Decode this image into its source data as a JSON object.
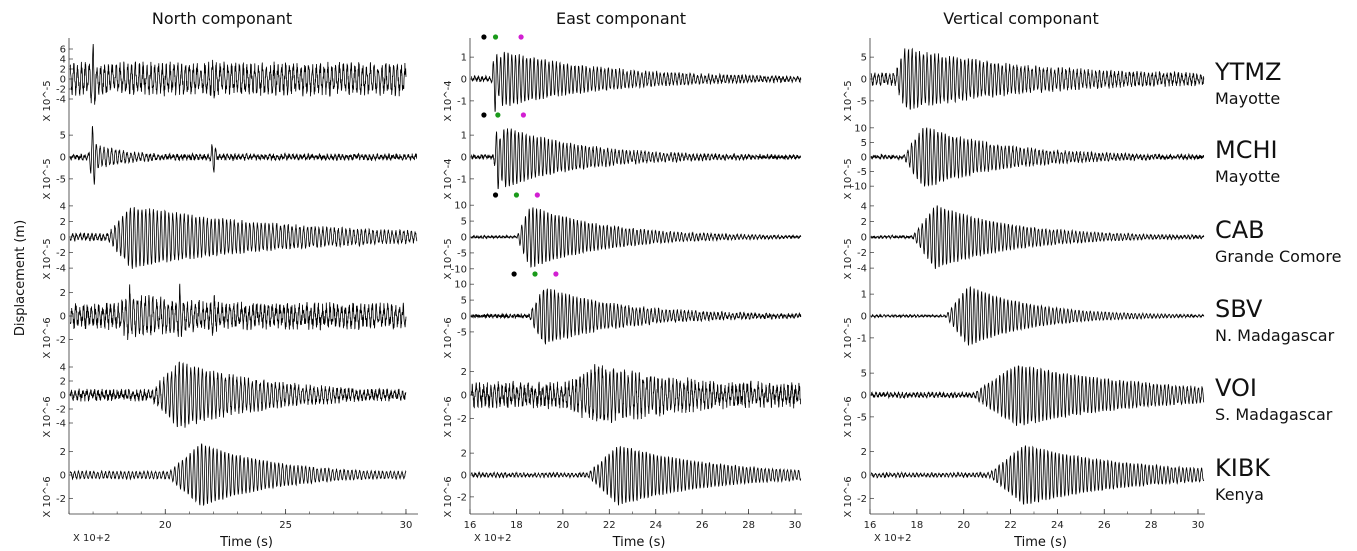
{
  "chart_data": {
    "type": "line",
    "ylabel": "Displacement (m)",
    "panels": [
      {
        "title": "North componant",
        "xlabel": "Time (s)",
        "x_multiplier": "X 10+2",
        "xlim": [
          16,
          30.5
        ],
        "x_ticks": [
          "20",
          "25",
          "30"
        ],
        "traces": [
          {
            "station": "YTMZ",
            "scale": "X 10^-5",
            "y_ticks": [
              "6",
              "4",
              "2",
              "0",
              "-2",
              "-4"
            ],
            "ylim": [
              -5,
              7
            ]
          },
          {
            "station": "MCHI",
            "scale": "X 10^-5",
            "y_ticks": [
              "5",
              "0",
              "-5"
            ],
            "ylim": [
              -7,
              8
            ]
          },
          {
            "station": "CAB",
            "scale": "X 10^-5",
            "y_ticks": [
              "4",
              "2",
              "0",
              "-2",
              "-4"
            ],
            "ylim": [
              -4.5,
              4.5
            ]
          },
          {
            "station": "SBV",
            "scale": "X 10^-6",
            "y_ticks": [
              "2",
              "0",
              "-2"
            ],
            "ylim": [
              -3,
              3
            ]
          },
          {
            "station": "VOI",
            "scale": "X 10^-6",
            "y_ticks": [
              "4",
              "2",
              "0",
              "-2",
              "-4"
            ],
            "ylim": [
              -5,
              5
            ]
          },
          {
            "station": "KIBK",
            "scale": "X 10^-6",
            "y_ticks": [
              "2",
              "0",
              "-2"
            ],
            "ylim": [
              -3,
              3
            ]
          }
        ]
      },
      {
        "title": "East componant",
        "xlabel": "Time (s)",
        "x_multiplier": "X 10+2",
        "xlim": [
          16,
          30.3
        ],
        "x_ticks": [
          "16",
          "18",
          "20",
          "22",
          "24",
          "26",
          "28",
          "30"
        ],
        "traces": [
          {
            "station": "YTMZ",
            "scale": "X 10^-4",
            "y_ticks": [
              "1",
              "0",
              "-1"
            ],
            "ylim": [
              -1.6,
              1.6
            ],
            "markers": [
              {
                "x": 16.6,
                "color": "#000000"
              },
              {
                "x": 17.1,
                "color": "#1a9a1a"
              },
              {
                "x": 18.2,
                "color": "#d21fd2"
              }
            ]
          },
          {
            "station": "MCHI",
            "scale": "X 10^-4",
            "y_ticks": [
              "1",
              "0",
              "-1"
            ],
            "ylim": [
              -1.6,
              1.6
            ],
            "markers": [
              {
                "x": 16.6,
                "color": "#000000"
              },
              {
                "x": 17.2,
                "color": "#1a9a1a"
              },
              {
                "x": 18.3,
                "color": "#d21fd2"
              }
            ]
          },
          {
            "station": "CAB",
            "scale": "X 10^-5",
            "y_ticks": [
              "10",
              "5",
              "0",
              "-5",
              "-10"
            ],
            "ylim": [
              -11,
              11
            ],
            "markers": [
              {
                "x": 17.1,
                "color": "#000000"
              },
              {
                "x": 18.0,
                "color": "#1a9a1a"
              },
              {
                "x": 18.9,
                "color": "#d21fd2"
              }
            ]
          },
          {
            "station": "SBV",
            "scale": "X 10^-6",
            "y_ticks": [
              "10",
              "5",
              "0",
              "-5"
            ],
            "ylim": [
              -10,
              11
            ],
            "markers": [
              {
                "x": 17.9,
                "color": "#000000"
              },
              {
                "x": 18.8,
                "color": "#1a9a1a"
              },
              {
                "x": 19.7,
                "color": "#d21fd2"
              }
            ]
          },
          {
            "station": "VOI",
            "scale": "X 10^-6",
            "y_ticks": [
              "2",
              "0",
              "-2"
            ],
            "ylim": [
              -3,
              3
            ]
          },
          {
            "station": "KIBK",
            "scale": "X 10^-6",
            "y_ticks": [
              "2",
              "0",
              "-2"
            ],
            "ylim": [
              -3.2,
              3.2
            ]
          }
        ]
      },
      {
        "title": "Vertical componant",
        "xlabel": "Time (s)",
        "x_multiplier": "X 10+2",
        "xlim": [
          16,
          30.3
        ],
        "x_ticks": [
          "16",
          "18",
          "20",
          "22",
          "24",
          "26",
          "28",
          "30"
        ],
        "traces": [
          {
            "station": "YTMZ",
            "scale": "X 10^-5",
            "y_ticks": [
              "5",
              "0",
              "-5"
            ],
            "ylim": [
              -8,
              8
            ]
          },
          {
            "station": "MCHI",
            "scale": "X 10^-5",
            "y_ticks": [
              "10",
              "5",
              "0",
              "-5",
              "-10"
            ],
            "ylim": [
              -12,
              12
            ]
          },
          {
            "station": "CAB",
            "scale": "X 10^-5",
            "y_ticks": [
              "4",
              "2",
              "0",
              "-2",
              "-4"
            ],
            "ylim": [
              -4.5,
              4.5
            ]
          },
          {
            "station": "SBV",
            "scale": "X 10^-5",
            "y_ticks": [
              "1",
              "0",
              "-1"
            ],
            "ylim": [
              -1.6,
              1.6
            ]
          },
          {
            "station": "VOI",
            "scale": "X 10^-6",
            "y_ticks": [
              "5",
              "0",
              "-5"
            ],
            "ylim": [
              -8,
              8
            ]
          },
          {
            "station": "KIBK",
            "scale": "X 10^-6",
            "y_ticks": [
              "2",
              "0",
              "-2"
            ],
            "ylim": [
              -3,
              3
            ]
          }
        ]
      }
    ],
    "stations": [
      {
        "code": "YTMZ",
        "location": "Mayotte"
      },
      {
        "code": "MCHI",
        "location": "Mayotte"
      },
      {
        "code": "CAB",
        "location": "Grande Comore"
      },
      {
        "code": "SBV",
        "location": "N. Madagascar"
      },
      {
        "code": "VOI",
        "location": "S. Madagascar"
      },
      {
        "code": "KIBK",
        "location": "Kenya"
      }
    ]
  }
}
